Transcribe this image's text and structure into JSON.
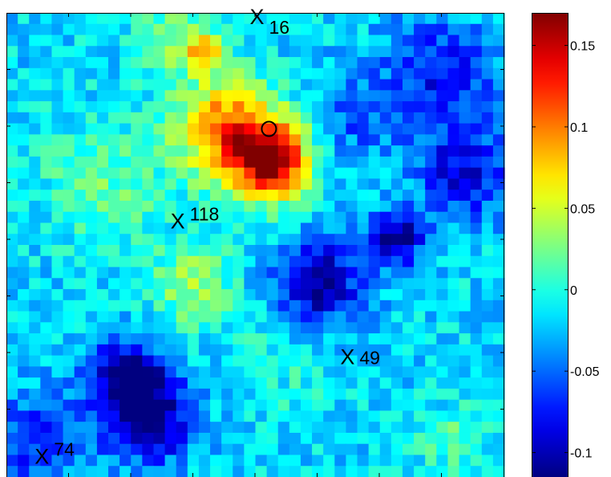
{
  "chart_data": {
    "type": "heatmap",
    "title": "",
    "xlabel": "",
    "ylabel": "",
    "grid": false,
    "colormap": "jet",
    "clim": [
      -0.115,
      0.17
    ],
    "colorbar": {
      "ticks": [
        0.15,
        0.1,
        0.05,
        0,
        -0.05,
        -0.1
      ],
      "tick_labels": [
        "0.15",
        "0.1",
        "0.05",
        "0",
        "-0.05",
        "-0.1"
      ]
    },
    "grid_size": {
      "cols": 44,
      "rows": 42
    },
    "field_features": [
      {
        "kind": "peak",
        "col": 23,
        "row": 13,
        "value": 0.165,
        "spread": 2.5
      },
      {
        "kind": "peak",
        "col": 19,
        "row": 10,
        "value": 0.12,
        "spread": 3.2
      },
      {
        "kind": "peak",
        "col": 17,
        "row": 3,
        "value": 0.07,
        "spread": 1.4
      },
      {
        "kind": "peak",
        "col": 16,
        "row": 24,
        "value": 0.055,
        "spread": 2.6
      },
      {
        "kind": "peak",
        "col": 14,
        "row": 2,
        "value": 0.045,
        "spread": 2.2
      },
      {
        "kind": "peak",
        "col": 8,
        "row": 15,
        "value": 0.035,
        "spread": 4.0
      },
      {
        "kind": "peak",
        "col": 39,
        "row": 38,
        "value": 0.035,
        "spread": 2.0
      },
      {
        "kind": "peak",
        "col": 24,
        "row": 31,
        "value": 0.015,
        "spread": 4.0
      },
      {
        "kind": "trough",
        "col": 12,
        "row": 36,
        "value": -0.11,
        "spread": 2.8
      },
      {
        "kind": "trough",
        "col": 10,
        "row": 32,
        "value": -0.085,
        "spread": 2.2
      },
      {
        "kind": "trough",
        "col": 27,
        "row": 24,
        "value": -0.095,
        "spread": 2.8
      },
      {
        "kind": "trough",
        "col": 34,
        "row": 20,
        "value": -0.1,
        "spread": 1.6
      },
      {
        "kind": "trough",
        "col": 38,
        "row": 5,
        "value": -0.06,
        "spread": 3.5
      },
      {
        "kind": "trough",
        "col": 40,
        "row": 14,
        "value": -0.07,
        "spread": 3.0
      },
      {
        "kind": "trough",
        "col": 2,
        "row": 38,
        "value": -0.055,
        "spread": 3.0
      },
      {
        "kind": "trough",
        "col": 30,
        "row": 9,
        "value": -0.035,
        "spread": 3.0
      }
    ],
    "annotations": [
      {
        "id": "target",
        "symbol": "O",
        "label": "",
        "col": 23.2,
        "row": 10.5
      },
      {
        "id": "m16",
        "symbol": "X",
        "label": "16",
        "col": 21.5,
        "row": 1.0
      },
      {
        "id": "m118",
        "symbol": "X",
        "label": "118",
        "col": 14.5,
        "row": 19.5
      },
      {
        "id": "m49",
        "symbol": "X",
        "label": "49",
        "col": 29.5,
        "row": 31.8
      },
      {
        "id": "m74",
        "symbol": "X",
        "label": "74",
        "col": 2.5,
        "row": 40.8
      }
    ]
  }
}
